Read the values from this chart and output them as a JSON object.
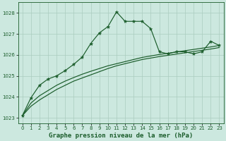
{
  "title": "Graphe pression niveau de la mer (hPa)",
  "background_color": "#cce8df",
  "grid_color": "#aaccbe",
  "line_color": "#1a5c2a",
  "xlim": [
    -0.5,
    23.5
  ],
  "ylim": [
    1022.75,
    1028.5
  ],
  "yticks": [
    1023,
    1024,
    1025,
    1026,
    1027,
    1028
  ],
  "xticks": [
    0,
    1,
    2,
    3,
    4,
    5,
    6,
    7,
    8,
    9,
    10,
    11,
    12,
    13,
    14,
    15,
    16,
    17,
    18,
    19,
    20,
    21,
    22,
    23
  ],
  "series1_x": [
    0,
    1,
    2,
    3,
    4,
    5,
    6,
    7,
    8,
    9,
    10,
    11,
    12,
    13,
    14,
    15,
    16,
    17,
    18,
    19,
    20,
    21,
    22,
    23
  ],
  "series1_y": [
    1023.1,
    1023.95,
    1024.55,
    1024.85,
    1025.0,
    1025.25,
    1025.55,
    1025.9,
    1026.55,
    1027.05,
    1027.35,
    1028.05,
    1027.6,
    1027.6,
    1027.6,
    1027.25,
    1026.15,
    1026.05,
    1026.15,
    1026.15,
    1026.05,
    1026.15,
    1026.65,
    1026.45
  ],
  "series2_x": [
    0,
    1,
    2,
    3,
    4,
    5,
    6,
    7,
    8,
    9,
    10,
    11,
    12,
    13,
    14,
    15,
    16,
    17,
    18,
    19,
    20,
    21,
    22,
    23
  ],
  "series2_y": [
    1023.1,
    1023.55,
    1023.85,
    1024.1,
    1024.35,
    1024.55,
    1024.75,
    1024.9,
    1025.05,
    1025.2,
    1025.35,
    1025.48,
    1025.58,
    1025.68,
    1025.78,
    1025.85,
    1025.92,
    1025.98,
    1026.04,
    1026.1,
    1026.16,
    1026.22,
    1026.28,
    1026.35
  ],
  "series3_x": [
    0,
    1,
    2,
    3,
    4,
    5,
    6,
    7,
    8,
    9,
    10,
    11,
    12,
    13,
    14,
    15,
    16,
    17,
    18,
    19,
    20,
    21,
    22,
    23
  ],
  "series3_y": [
    1023.1,
    1023.7,
    1024.05,
    1024.3,
    1024.55,
    1024.75,
    1024.92,
    1025.08,
    1025.22,
    1025.35,
    1025.48,
    1025.58,
    1025.68,
    1025.78,
    1025.88,
    1025.95,
    1026.02,
    1026.08,
    1026.14,
    1026.2,
    1026.26,
    1026.32,
    1026.38,
    1026.45
  ],
  "title_fontsize": 6.5,
  "tick_fontsize": 5.0,
  "linewidth": 0.85,
  "markersize": 3.5
}
